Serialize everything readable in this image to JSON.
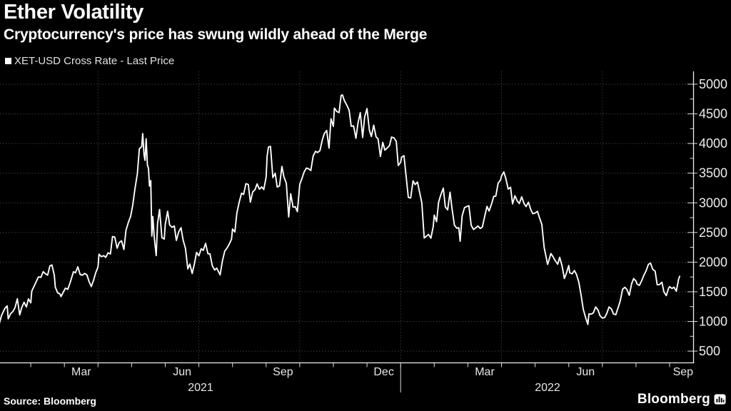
{
  "header": {
    "title": "Ether Volatility",
    "subtitle": "Cryptocurrency's price has swung wildly ahead of the Merge"
  },
  "legend": {
    "swatch_color": "#ffffff",
    "label": "XET-USD Cross Rate - Last Price"
  },
  "footer": {
    "source": "Source: Bloomberg",
    "brand": "Bloomberg",
    "brand_icon": "bloomberg-terminal-icon"
  },
  "chart_data": {
    "type": "line",
    "title": "Ether Volatility",
    "series_name": "XET-USD Cross Rate - Last Price",
    "line_color": "#ffffff",
    "background_color": "#000000",
    "grid_color": "#3f3f3f",
    "grid": "dotted",
    "legend_position": "top-left",
    "x_unit": "months since 2021-01-01",
    "x_range": [
      0,
      20.3
    ],
    "ylim": [
      500,
      5000
    ],
    "y_axis": {
      "side": "right",
      "ticks": [
        500,
        1000,
        1500,
        2000,
        2500,
        3000,
        3500,
        4000,
        4500,
        5000
      ],
      "minor_tick_step": 250
    },
    "x_axis": {
      "month_tick_step": 1,
      "grid_months": [
        3,
        6,
        9,
        12,
        15,
        18
      ],
      "month_labels": [
        {
          "label": "Mar",
          "m": 2.5
        },
        {
          "label": "Jun",
          "m": 5.5
        },
        {
          "label": "Sep",
          "m": 8.5
        },
        {
          "label": "Dec",
          "m": 11.5
        },
        {
          "label": "Mar",
          "m": 14.5
        },
        {
          "label": "Jun",
          "m": 17.5
        },
        {
          "label": "Sep",
          "m": 20.4
        }
      ],
      "year_labels": [
        {
          "label": "2021",
          "m": 6.05
        },
        {
          "label": "2022",
          "m": 16.37
        }
      ],
      "year_divider_m": 12
    },
    "points": [
      [
        0.0,
        737
      ],
      [
        0.07,
        975
      ],
      [
        0.13,
        1100
      ],
      [
        0.23,
        1220
      ],
      [
        0.3,
        1262
      ],
      [
        0.33,
        1045
      ],
      [
        0.4,
        1130
      ],
      [
        0.47,
        1168
      ],
      [
        0.53,
        1232
      ],
      [
        0.6,
        1382
      ],
      [
        0.67,
        1110
      ],
      [
        0.73,
        1233
      ],
      [
        0.8,
        1324
      ],
      [
        0.87,
        1246
      ],
      [
        0.93,
        1380
      ],
      [
        1.0,
        1314
      ],
      [
        1.03,
        1512
      ],
      [
        1.1,
        1594
      ],
      [
        1.17,
        1680
      ],
      [
        1.23,
        1752
      ],
      [
        1.3,
        1742
      ],
      [
        1.37,
        1840
      ],
      [
        1.43,
        1805
      ],
      [
        1.5,
        1781
      ],
      [
        1.57,
        1937
      ],
      [
        1.63,
        1952
      ],
      [
        1.7,
        1776
      ],
      [
        1.73,
        1578
      ],
      [
        1.8,
        1482
      ],
      [
        1.87,
        1462
      ],
      [
        1.9,
        1420
      ],
      [
        2.03,
        1562
      ],
      [
        2.1,
        1541
      ],
      [
        2.17,
        1652
      ],
      [
        2.27,
        1838
      ],
      [
        2.33,
        1820
      ],
      [
        2.4,
        1920
      ],
      [
        2.47,
        1792
      ],
      [
        2.53,
        1779
      ],
      [
        2.6,
        1810
      ],
      [
        2.67,
        1784
      ],
      [
        2.73,
        1678
      ],
      [
        2.8,
        1588
      ],
      [
        2.87,
        1700
      ],
      [
        2.93,
        1818
      ],
      [
        3.0,
        1919
      ],
      [
        3.03,
        2133
      ],
      [
        3.1,
        2092
      ],
      [
        3.17,
        2110
      ],
      [
        3.23,
        2080
      ],
      [
        3.3,
        2157
      ],
      [
        3.37,
        2138
      ],
      [
        3.43,
        2432
      ],
      [
        3.5,
        2422
      ],
      [
        3.57,
        2236
      ],
      [
        3.63,
        2330
      ],
      [
        3.7,
        2360
      ],
      [
        3.77,
        2213
      ],
      [
        3.83,
        2533
      ],
      [
        3.9,
        2666
      ],
      [
        3.97,
        2772
      ],
      [
        4.03,
        2950
      ],
      [
        4.1,
        3240
      ],
      [
        4.17,
        3489
      ],
      [
        4.23,
        3910
      ],
      [
        4.3,
        3948
      ],
      [
        4.33,
        4168
      ],
      [
        4.37,
        3805
      ],
      [
        4.4,
        3715
      ],
      [
        4.43,
        4078
      ],
      [
        4.47,
        3638
      ],
      [
        4.5,
        3581
      ],
      [
        4.53,
        3282
      ],
      [
        4.57,
        3375
      ],
      [
        4.6,
        2439
      ],
      [
        4.63,
        2768
      ],
      [
        4.67,
        2430
      ],
      [
        4.73,
        2110
      ],
      [
        4.77,
        2649
      ],
      [
        4.83,
        2888
      ],
      [
        4.9,
        2412
      ],
      [
        4.97,
        2390
      ],
      [
        5.0,
        2634
      ],
      [
        5.07,
        2857
      ],
      [
        5.13,
        2629
      ],
      [
        5.2,
        2587
      ],
      [
        5.27,
        2610
      ],
      [
        5.33,
        2367
      ],
      [
        5.4,
        2508
      ],
      [
        5.47,
        2581
      ],
      [
        5.53,
        2373
      ],
      [
        5.6,
        2232
      ],
      [
        5.67,
        1886
      ],
      [
        5.73,
        1968
      ],
      [
        5.8,
        1809
      ],
      [
        5.87,
        1982
      ],
      [
        5.93,
        2164
      ],
      [
        6.0,
        2107
      ],
      [
        6.07,
        2226
      ],
      [
        6.13,
        2198
      ],
      [
        6.2,
        2316
      ],
      [
        6.27,
        2140
      ],
      [
        6.33,
        2140
      ],
      [
        6.4,
        1940
      ],
      [
        6.47,
        1868
      ],
      [
        6.53,
        1900
      ],
      [
        6.6,
        1818
      ],
      [
        6.63,
        1786
      ],
      [
        6.7,
        2022
      ],
      [
        6.77,
        2189
      ],
      [
        6.83,
        2231
      ],
      [
        6.9,
        2300
      ],
      [
        6.97,
        2386
      ],
      [
        7.0,
        2558
      ],
      [
        7.07,
        2508
      ],
      [
        7.13,
        2827
      ],
      [
        7.2,
        3012
      ],
      [
        7.27,
        3163
      ],
      [
        7.33,
        3140
      ],
      [
        7.4,
        3323
      ],
      [
        7.47,
        3310
      ],
      [
        7.53,
        3012
      ],
      [
        7.6,
        3185
      ],
      [
        7.67,
        3223
      ],
      [
        7.73,
        3319
      ],
      [
        7.8,
        3230
      ],
      [
        7.87,
        3268
      ],
      [
        7.93,
        3224
      ],
      [
        8.0,
        3433
      ],
      [
        8.03,
        3790
      ],
      [
        8.07,
        3940
      ],
      [
        8.13,
        3952
      ],
      [
        8.2,
        3426
      ],
      [
        8.27,
        3500
      ],
      [
        8.33,
        3267
      ],
      [
        8.4,
        3287
      ],
      [
        8.47,
        3614
      ],
      [
        8.53,
        3434
      ],
      [
        8.6,
        3330
      ],
      [
        8.67,
        2761
      ],
      [
        8.73,
        3152
      ],
      [
        8.8,
        2928
      ],
      [
        8.87,
        2932
      ],
      [
        8.93,
        2852
      ],
      [
        9.0,
        3310
      ],
      [
        9.07,
        3418
      ],
      [
        9.13,
        3520
      ],
      [
        9.2,
        3587
      ],
      [
        9.27,
        3572
      ],
      [
        9.33,
        3544
      ],
      [
        9.4,
        3790
      ],
      [
        9.47,
        3868
      ],
      [
        9.53,
        3849
      ],
      [
        9.6,
        3880
      ],
      [
        9.67,
        4061
      ],
      [
        9.73,
        4167
      ],
      [
        9.8,
        4220
      ],
      [
        9.87,
        3922
      ],
      [
        9.93,
        4417
      ],
      [
        10.0,
        4288
      ],
      [
        10.03,
        4598
      ],
      [
        10.1,
        4540
      ],
      [
        10.17,
        4521
      ],
      [
        10.23,
        4808
      ],
      [
        10.27,
        4820
      ],
      [
        10.33,
        4720
      ],
      [
        10.4,
        4648
      ],
      [
        10.47,
        4561
      ],
      [
        10.53,
        4290
      ],
      [
        10.6,
        4298
      ],
      [
        10.67,
        4088
      ],
      [
        10.73,
        4340
      ],
      [
        10.8,
        4520
      ],
      [
        10.87,
        4101
      ],
      [
        10.93,
        4447
      ],
      [
        11.0,
        4588
      ],
      [
        11.07,
        4226
      ],
      [
        11.13,
        4118
      ],
      [
        11.2,
        4310
      ],
      [
        11.27,
        4112
      ],
      [
        11.33,
        4078
      ],
      [
        11.4,
        3782
      ],
      [
        11.47,
        4019
      ],
      [
        11.53,
        3888
      ],
      [
        11.6,
        3924
      ],
      [
        11.67,
        3968
      ],
      [
        11.73,
        4108
      ],
      [
        11.8,
        4097
      ],
      [
        11.87,
        4037
      ],
      [
        11.93,
        3628
      ],
      [
        12.0,
        3683
      ],
      [
        12.03,
        3769
      ],
      [
        12.1,
        3794
      ],
      [
        12.17,
        3412
      ],
      [
        12.23,
        3091
      ],
      [
        12.3,
        3083
      ],
      [
        12.37,
        3371
      ],
      [
        12.43,
        3308
      ],
      [
        12.5,
        3351
      ],
      [
        12.57,
        3164
      ],
      [
        12.63,
        3002
      ],
      [
        12.7,
        2406
      ],
      [
        12.77,
        2440
      ],
      [
        12.83,
        2468
      ],
      [
        12.9,
        2404
      ],
      [
        12.97,
        2603
      ],
      [
        13.0,
        2792
      ],
      [
        13.07,
        2682
      ],
      [
        13.13,
        3012
      ],
      [
        13.2,
        3143
      ],
      [
        13.27,
        3247
      ],
      [
        13.33,
        2932
      ],
      [
        13.4,
        2881
      ],
      [
        13.47,
        3180
      ],
      [
        13.53,
        2892
      ],
      [
        13.6,
        2622
      ],
      [
        13.67,
        2572
      ],
      [
        13.73,
        2581
      ],
      [
        13.77,
        2352
      ],
      [
        13.83,
        2780
      ],
      [
        13.9,
        2920
      ],
      [
        14.03,
        2952
      ],
      [
        14.1,
        2621
      ],
      [
        14.17,
        2551
      ],
      [
        14.23,
        2576
      ],
      [
        14.3,
        2608
      ],
      [
        14.37,
        2568
      ],
      [
        14.43,
        2592
      ],
      [
        14.5,
        2772
      ],
      [
        14.57,
        2941
      ],
      [
        14.63,
        2862
      ],
      [
        14.7,
        2973
      ],
      [
        14.77,
        3110
      ],
      [
        14.83,
        3113
      ],
      [
        14.9,
        3331
      ],
      [
        14.97,
        3384
      ],
      [
        15.0,
        3450
      ],
      [
        15.07,
        3521
      ],
      [
        15.13,
        3410
      ],
      [
        15.2,
        3232
      ],
      [
        15.27,
        3263
      ],
      [
        15.33,
        2983
      ],
      [
        15.4,
        3118
      ],
      [
        15.47,
        3029
      ],
      [
        15.53,
        2988
      ],
      [
        15.6,
        3102
      ],
      [
        15.67,
        2987
      ],
      [
        15.73,
        2937
      ],
      [
        15.8,
        3010
      ],
      [
        15.87,
        2888
      ],
      [
        15.93,
        2817
      ],
      [
        16.0,
        2827
      ],
      [
        16.07,
        2857
      ],
      [
        16.13,
        2749
      ],
      [
        16.2,
        2636
      ],
      [
        16.27,
        2245
      ],
      [
        16.33,
        2082
      ],
      [
        16.37,
        1962
      ],
      [
        16.4,
        2009
      ],
      [
        16.47,
        2145
      ],
      [
        16.53,
        2092
      ],
      [
        16.6,
        2022
      ],
      [
        16.67,
        1965
      ],
      [
        16.73,
        2082
      ],
      [
        16.8,
        1940
      ],
      [
        16.87,
        1724
      ],
      [
        16.93,
        1812
      ],
      [
        17.0,
        1942
      ],
      [
        17.03,
        1822
      ],
      [
        17.1,
        1802
      ],
      [
        17.17,
        1858
      ],
      [
        17.23,
        1794
      ],
      [
        17.3,
        1663
      ],
      [
        17.37,
        1438
      ],
      [
        17.43,
        1208
      ],
      [
        17.5,
        1068
      ],
      [
        17.57,
        950
      ],
      [
        17.6,
        1128
      ],
      [
        17.67,
        1124
      ],
      [
        17.73,
        1143
      ],
      [
        17.8,
        1244
      ],
      [
        17.87,
        1193
      ],
      [
        17.93,
        1098
      ],
      [
        18.0,
        1057
      ],
      [
        18.07,
        1068
      ],
      [
        18.13,
        1133
      ],
      [
        18.2,
        1244
      ],
      [
        18.27,
        1211
      ],
      [
        18.33,
        1128
      ],
      [
        18.4,
        1113
      ],
      [
        18.47,
        1233
      ],
      [
        18.53,
        1344
      ],
      [
        18.6,
        1542
      ],
      [
        18.67,
        1576
      ],
      [
        18.73,
        1538
      ],
      [
        18.8,
        1440
      ],
      [
        18.87,
        1636
      ],
      [
        18.93,
        1723
      ],
      [
        19.0,
        1681
      ],
      [
        19.03,
        1632
      ],
      [
        19.1,
        1608
      ],
      [
        19.17,
        1688
      ],
      [
        19.23,
        1774
      ],
      [
        19.3,
        1852
      ],
      [
        19.37,
        1962
      ],
      [
        19.43,
        1984
      ],
      [
        19.5,
        1876
      ],
      [
        19.57,
        1849
      ],
      [
        19.63,
        1618
      ],
      [
        19.7,
        1622
      ],
      [
        19.77,
        1662
      ],
      [
        19.83,
        1498
      ],
      [
        19.9,
        1435
      ],
      [
        19.97,
        1562
      ],
      [
        20.0,
        1587
      ],
      [
        20.07,
        1556
      ],
      [
        20.13,
        1577
      ],
      [
        20.2,
        1510
      ],
      [
        20.27,
        1717
      ],
      [
        20.3,
        1762
      ]
    ]
  }
}
